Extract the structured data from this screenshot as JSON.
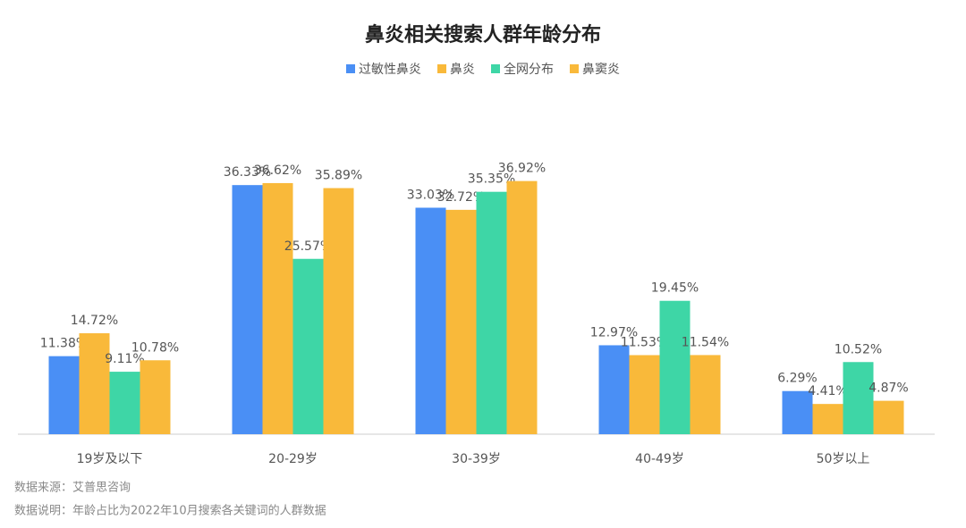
{
  "chart_data": {
    "type": "bar",
    "title": "鼻炎相关搜索人群年龄分布",
    "categories": [
      "19岁及以下",
      "20-29岁",
      "30-39岁",
      "40-49岁",
      "50岁以上"
    ],
    "series": [
      {
        "name": "过敏性鼻炎",
        "color": "#4a8ff5",
        "values": [
          11.38,
          36.33,
          33.03,
          12.97,
          6.29
        ],
        "value_labels": [
          "11.38%",
          "36.33%",
          "33.03%",
          "12.97%",
          "6.29%"
        ]
      },
      {
        "name": "鼻炎",
        "color": "#f9b93a",
        "values": [
          14.72,
          36.62,
          32.72,
          11.53,
          4.41
        ],
        "value_labels": [
          "14.72%",
          "36.62%",
          "32.72%",
          "11.53%",
          "4.41%"
        ]
      },
      {
        "name": "全网分布",
        "color": "#3ed6a6",
        "values": [
          9.11,
          25.57,
          35.35,
          19.45,
          10.52
        ],
        "value_labels": [
          "9.11%",
          "25.57%",
          "35.35%",
          "19.45%",
          "10.52%"
        ]
      },
      {
        "name": "鼻窦炎",
        "color": "#f9b93a",
        "values": [
          10.78,
          35.89,
          36.92,
          11.54,
          4.87
        ],
        "value_labels": [
          "10.78%",
          "35.89%",
          "36.92%",
          "11.54%",
          "4.87%"
        ]
      }
    ],
    "ylim": [
      0,
      40
    ],
    "legend": "top",
    "notes": [
      "数据来源：艾普思咨询",
      "数据说明：年龄占比为2022年10月搜索各关键词的人群数据"
    ]
  }
}
